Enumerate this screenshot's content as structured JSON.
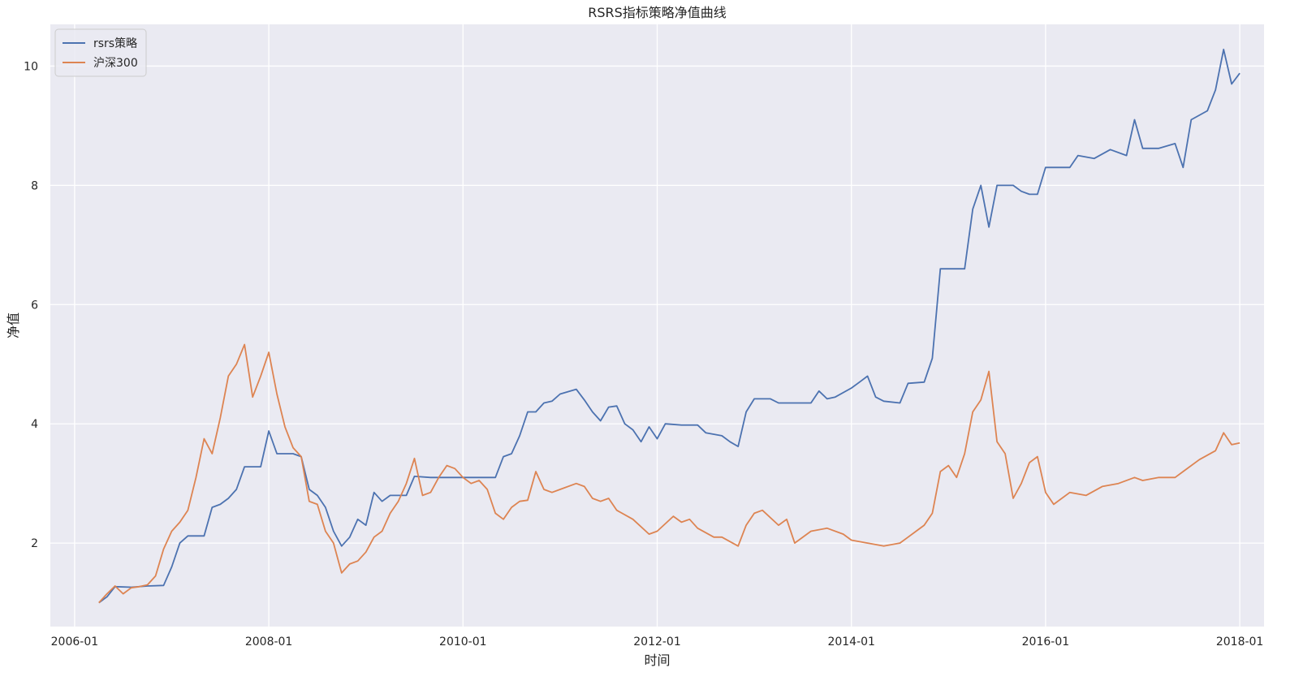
{
  "chart_data": {
    "type": "line",
    "title": "RSRS指标策略净值曲线",
    "xlabel": "时间",
    "ylabel": "净值",
    "x_ticks": [
      "2006-01",
      "2008-01",
      "2010-01",
      "2012-01",
      "2014-01",
      "2016-01",
      "2018-01"
    ],
    "y_ticks": [
      2,
      4,
      6,
      8,
      10
    ],
    "xlim": [
      "2005-10",
      "2018-04"
    ],
    "ylim": [
      0.6,
      10.7
    ],
    "grid": true,
    "background": "#eaeaf2",
    "legend_position": "top-left",
    "series": [
      {
        "name": "rsrs策略",
        "color": "#4c72b0",
        "points": [
          [
            "2006-04",
            1.0
          ],
          [
            "2006-05",
            1.1
          ],
          [
            "2006-06",
            1.27
          ],
          [
            "2006-08",
            1.26
          ],
          [
            "2006-10",
            1.28
          ],
          [
            "2006-12",
            1.29
          ],
          [
            "2007-01",
            1.6
          ],
          [
            "2007-02",
            2.0
          ],
          [
            "2007-03",
            2.12
          ],
          [
            "2007-05",
            2.12
          ],
          [
            "2007-06",
            2.6
          ],
          [
            "2007-07",
            2.65
          ],
          [
            "2007-08",
            2.75
          ],
          [
            "2007-09",
            2.9
          ],
          [
            "2007-10",
            3.28
          ],
          [
            "2007-12",
            3.28
          ],
          [
            "2008-01",
            3.88
          ],
          [
            "2008-02",
            3.5
          ],
          [
            "2008-04",
            3.5
          ],
          [
            "2008-05",
            3.45
          ],
          [
            "2008-06",
            2.9
          ],
          [
            "2008-07",
            2.8
          ],
          [
            "2008-08",
            2.6
          ],
          [
            "2008-09",
            2.2
          ],
          [
            "2008-10",
            1.95
          ],
          [
            "2008-11",
            2.1
          ],
          [
            "2008-12",
            2.4
          ],
          [
            "2009-01",
            2.3
          ],
          [
            "2009-02",
            2.85
          ],
          [
            "2009-03",
            2.7
          ],
          [
            "2009-04",
            2.8
          ],
          [
            "2009-06",
            2.8
          ],
          [
            "2009-07",
            3.12
          ],
          [
            "2009-09",
            3.1
          ],
          [
            "2009-11",
            3.1
          ],
          [
            "2010-01",
            3.1
          ],
          [
            "2010-03",
            3.1
          ],
          [
            "2010-05",
            3.1
          ],
          [
            "2010-06",
            3.45
          ],
          [
            "2010-07",
            3.5
          ],
          [
            "2010-08",
            3.8
          ],
          [
            "2010-09",
            4.2
          ],
          [
            "2010-10",
            4.2
          ],
          [
            "2010-11",
            4.35
          ],
          [
            "2010-12",
            4.38
          ],
          [
            "2011-01",
            4.5
          ],
          [
            "2011-03",
            4.58
          ],
          [
            "2011-04",
            4.4
          ],
          [
            "2011-05",
            4.2
          ],
          [
            "2011-06",
            4.05
          ],
          [
            "2011-07",
            4.28
          ],
          [
            "2011-08",
            4.3
          ],
          [
            "2011-09",
            4.0
          ],
          [
            "2011-10",
            3.9
          ],
          [
            "2011-11",
            3.7
          ],
          [
            "2011-12",
            3.95
          ],
          [
            "2012-01",
            3.75
          ],
          [
            "2012-02",
            4.0
          ],
          [
            "2012-04",
            3.98
          ],
          [
            "2012-06",
            3.98
          ],
          [
            "2012-07",
            3.85
          ],
          [
            "2012-09",
            3.8
          ],
          [
            "2012-10",
            3.7
          ],
          [
            "2012-11",
            3.62
          ],
          [
            "2012-12",
            4.2
          ],
          [
            "2013-01",
            4.42
          ],
          [
            "2013-03",
            4.42
          ],
          [
            "2013-04",
            4.35
          ],
          [
            "2013-06",
            4.35
          ],
          [
            "2013-08",
            4.35
          ],
          [
            "2013-09",
            4.55
          ],
          [
            "2013-10",
            4.42
          ],
          [
            "2013-11",
            4.45
          ],
          [
            "2014-01",
            4.6
          ],
          [
            "2014-02",
            4.7
          ],
          [
            "2014-03",
            4.8
          ],
          [
            "2014-04",
            4.45
          ],
          [
            "2014-05",
            4.38
          ],
          [
            "2014-07",
            4.35
          ],
          [
            "2014-08",
            4.68
          ],
          [
            "2014-10",
            4.7
          ],
          [
            "2014-11",
            5.1
          ],
          [
            "2014-12",
            6.6
          ],
          [
            "2015-01",
            6.6
          ],
          [
            "2015-03",
            6.6
          ],
          [
            "2015-04",
            7.6
          ],
          [
            "2015-05",
            8.0
          ],
          [
            "2015-06",
            7.3
          ],
          [
            "2015-07",
            8.0
          ],
          [
            "2015-09",
            8.0
          ],
          [
            "2015-10",
            7.9
          ],
          [
            "2015-11",
            7.85
          ],
          [
            "2015-12",
            7.85
          ],
          [
            "2016-01",
            8.3
          ],
          [
            "2016-03",
            8.3
          ],
          [
            "2016-04",
            8.3
          ],
          [
            "2016-05",
            8.5
          ],
          [
            "2016-07",
            8.45
          ],
          [
            "2016-09",
            8.6
          ],
          [
            "2016-11",
            8.5
          ],
          [
            "2016-12",
            9.1
          ],
          [
            "2017-01",
            8.62
          ],
          [
            "2017-03",
            8.62
          ],
          [
            "2017-05",
            8.7
          ],
          [
            "2017-06",
            8.3
          ],
          [
            "2017-07",
            9.1
          ],
          [
            "2017-09",
            9.25
          ],
          [
            "2017-10",
            9.6
          ],
          [
            "2017-11",
            10.28
          ],
          [
            "2017-12",
            9.7
          ],
          [
            "2018-01",
            9.88
          ]
        ]
      },
      {
        "name": "沪深300",
        "color": "#dd8452",
        "points": [
          [
            "2006-04",
            1.0
          ],
          [
            "2006-05",
            1.15
          ],
          [
            "2006-06",
            1.28
          ],
          [
            "2006-07",
            1.15
          ],
          [
            "2006-08",
            1.25
          ],
          [
            "2006-09",
            1.27
          ],
          [
            "2006-10",
            1.3
          ],
          [
            "2006-11",
            1.45
          ],
          [
            "2006-12",
            1.9
          ],
          [
            "2007-01",
            2.2
          ],
          [
            "2007-02",
            2.35
          ],
          [
            "2007-03",
            2.55
          ],
          [
            "2007-04",
            3.1
          ],
          [
            "2007-05",
            3.75
          ],
          [
            "2007-06",
            3.5
          ],
          [
            "2007-07",
            4.1
          ],
          [
            "2007-08",
            4.8
          ],
          [
            "2007-09",
            5.0
          ],
          [
            "2007-10",
            5.33
          ],
          [
            "2007-11",
            4.45
          ],
          [
            "2007-12",
            4.8
          ],
          [
            "2008-01",
            5.2
          ],
          [
            "2008-02",
            4.5
          ],
          [
            "2008-03",
            3.95
          ],
          [
            "2008-04",
            3.6
          ],
          [
            "2008-05",
            3.45
          ],
          [
            "2008-06",
            2.7
          ],
          [
            "2008-07",
            2.65
          ],
          [
            "2008-08",
            2.2
          ],
          [
            "2008-09",
            2.0
          ],
          [
            "2008-10",
            1.5
          ],
          [
            "2008-11",
            1.65
          ],
          [
            "2008-12",
            1.7
          ],
          [
            "2009-01",
            1.85
          ],
          [
            "2009-02",
            2.1
          ],
          [
            "2009-03",
            2.2
          ],
          [
            "2009-04",
            2.5
          ],
          [
            "2009-05",
            2.7
          ],
          [
            "2009-06",
            3.0
          ],
          [
            "2009-07",
            3.42
          ],
          [
            "2009-08",
            2.8
          ],
          [
            "2009-09",
            2.85
          ],
          [
            "2009-10",
            3.1
          ],
          [
            "2009-11",
            3.3
          ],
          [
            "2009-12",
            3.25
          ],
          [
            "2010-01",
            3.1
          ],
          [
            "2010-02",
            3.0
          ],
          [
            "2010-03",
            3.05
          ],
          [
            "2010-04",
            2.9
          ],
          [
            "2010-05",
            2.5
          ],
          [
            "2010-06",
            2.4
          ],
          [
            "2010-07",
            2.6
          ],
          [
            "2010-08",
            2.7
          ],
          [
            "2010-09",
            2.72
          ],
          [
            "2010-10",
            3.2
          ],
          [
            "2010-11",
            2.9
          ],
          [
            "2010-12",
            2.85
          ],
          [
            "2011-01",
            2.9
          ],
          [
            "2011-03",
            3.0
          ],
          [
            "2011-04",
            2.95
          ],
          [
            "2011-05",
            2.75
          ],
          [
            "2011-06",
            2.7
          ],
          [
            "2011-07",
            2.75
          ],
          [
            "2011-08",
            2.55
          ],
          [
            "2011-10",
            2.4
          ],
          [
            "2011-12",
            2.15
          ],
          [
            "2012-01",
            2.2
          ],
          [
            "2012-03",
            2.45
          ],
          [
            "2012-04",
            2.35
          ],
          [
            "2012-05",
            2.4
          ],
          [
            "2012-06",
            2.25
          ],
          [
            "2012-08",
            2.1
          ],
          [
            "2012-09",
            2.1
          ],
          [
            "2012-11",
            1.95
          ],
          [
            "2012-12",
            2.3
          ],
          [
            "2013-01",
            2.5
          ],
          [
            "2013-02",
            2.55
          ],
          [
            "2013-04",
            2.3
          ],
          [
            "2013-05",
            2.4
          ],
          [
            "2013-06",
            2.0
          ],
          [
            "2013-08",
            2.2
          ],
          [
            "2013-10",
            2.25
          ],
          [
            "2013-12",
            2.15
          ],
          [
            "2014-01",
            2.05
          ],
          [
            "2014-03",
            2.0
          ],
          [
            "2014-05",
            1.95
          ],
          [
            "2014-07",
            2.0
          ],
          [
            "2014-08",
            2.1
          ],
          [
            "2014-09",
            2.2
          ],
          [
            "2014-10",
            2.3
          ],
          [
            "2014-11",
            2.5
          ],
          [
            "2014-12",
            3.2
          ],
          [
            "2015-01",
            3.3
          ],
          [
            "2015-02",
            3.1
          ],
          [
            "2015-03",
            3.5
          ],
          [
            "2015-04",
            4.2
          ],
          [
            "2015-05",
            4.4
          ],
          [
            "2015-06",
            4.88
          ],
          [
            "2015-07",
            3.7
          ],
          [
            "2015-08",
            3.5
          ],
          [
            "2015-09",
            2.75
          ],
          [
            "2015-10",
            3.0
          ],
          [
            "2015-11",
            3.35
          ],
          [
            "2015-12",
            3.45
          ],
          [
            "2016-01",
            2.85
          ],
          [
            "2016-02",
            2.65
          ],
          [
            "2016-04",
            2.85
          ],
          [
            "2016-06",
            2.8
          ],
          [
            "2016-08",
            2.95
          ],
          [
            "2016-10",
            3.0
          ],
          [
            "2016-12",
            3.1
          ],
          [
            "2017-01",
            3.05
          ],
          [
            "2017-03",
            3.1
          ],
          [
            "2017-05",
            3.1
          ],
          [
            "2017-06",
            3.2
          ],
          [
            "2017-08",
            3.4
          ],
          [
            "2017-10",
            3.55
          ],
          [
            "2017-11",
            3.85
          ],
          [
            "2017-12",
            3.65
          ],
          [
            "2018-01",
            3.68
          ]
        ]
      }
    ]
  }
}
